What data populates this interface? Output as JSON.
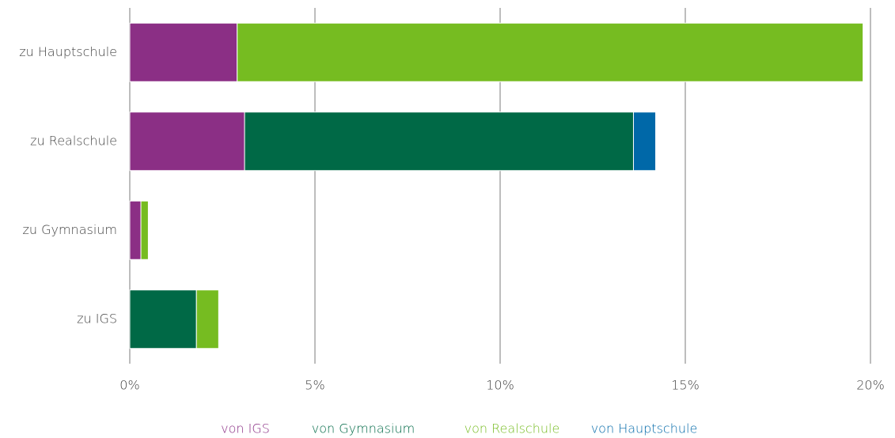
{
  "chart_data": {
    "type": "stacked-bar-horizontal",
    "categories": [
      "zu Hauptschule",
      "zu Realschule",
      "zu Gymnasium",
      "zu IGS"
    ],
    "series": [
      {
        "name": "von IGS",
        "color": "#8b2f85",
        "values": [
          2.9,
          3.1,
          0.3,
          0
        ]
      },
      {
        "name": "von Gymnasium",
        "color": "#006946",
        "values": [
          0,
          10.5,
          0,
          1.8
        ]
      },
      {
        "name": "von Realschule",
        "color": "#76bc21",
        "values": [
          16.9,
          0,
          0.2,
          0.6
        ]
      },
      {
        "name": "von Hauptschule",
        "color": "#0068a8",
        "values": [
          0,
          0.6,
          0,
          0
        ]
      }
    ],
    "xlim": [
      0,
      20
    ],
    "xticks": [
      {
        "value": 0,
        "label": "0%"
      },
      {
        "value": 5,
        "label": "5%"
      },
      {
        "value": 10,
        "label": "10%"
      },
      {
        "value": 15,
        "label": "15%"
      },
      {
        "value": 20,
        "label": "20%"
      }
    ],
    "grid": true,
    "legend": "bottom"
  }
}
